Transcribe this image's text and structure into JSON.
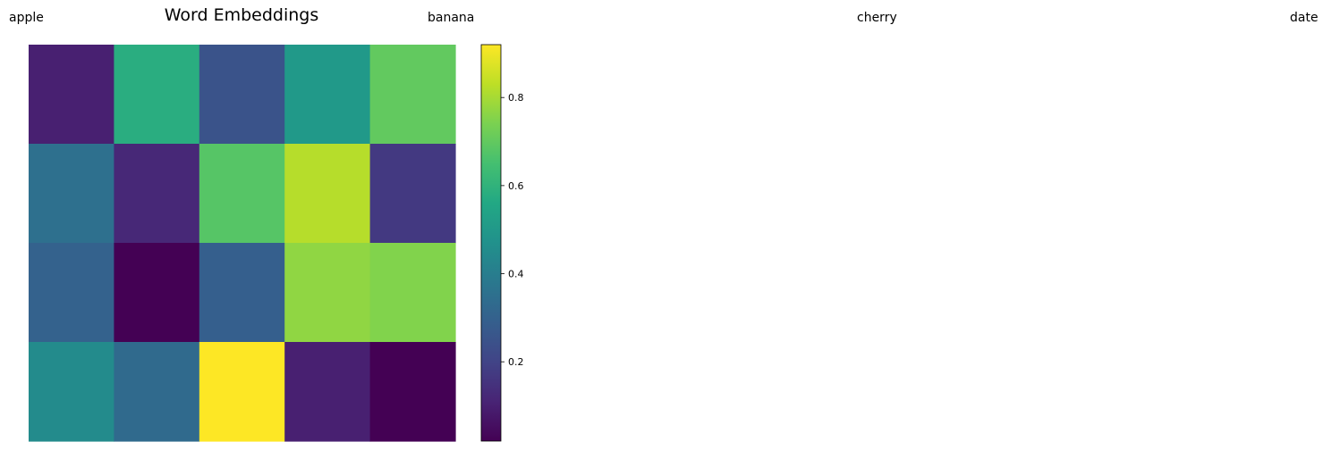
{
  "words": [
    "apple",
    "banana",
    "cherry",
    "date"
  ],
  "chart_data": {
    "type": "heatmap",
    "title": "Word Embeddings",
    "colormap": "viridis",
    "rows": 4,
    "cols": 5,
    "values": [
      [
        0.1,
        0.58,
        0.25,
        0.5,
        0.7
      ],
      [
        0.35,
        0.12,
        0.68,
        0.82,
        0.17
      ],
      [
        0.3,
        0.02,
        0.29,
        0.77,
        0.75
      ],
      [
        0.45,
        0.33,
        0.92,
        0.1,
        0.02
      ]
    ],
    "colorbar": {
      "range": [
        0.02,
        0.92
      ],
      "ticks": [
        0.2,
        0.4,
        0.6,
        0.8
      ],
      "tick_labels": [
        "0.2",
        "0.4",
        "0.6",
        "0.8"
      ]
    },
    "grid": false,
    "axes_visible": false
  }
}
